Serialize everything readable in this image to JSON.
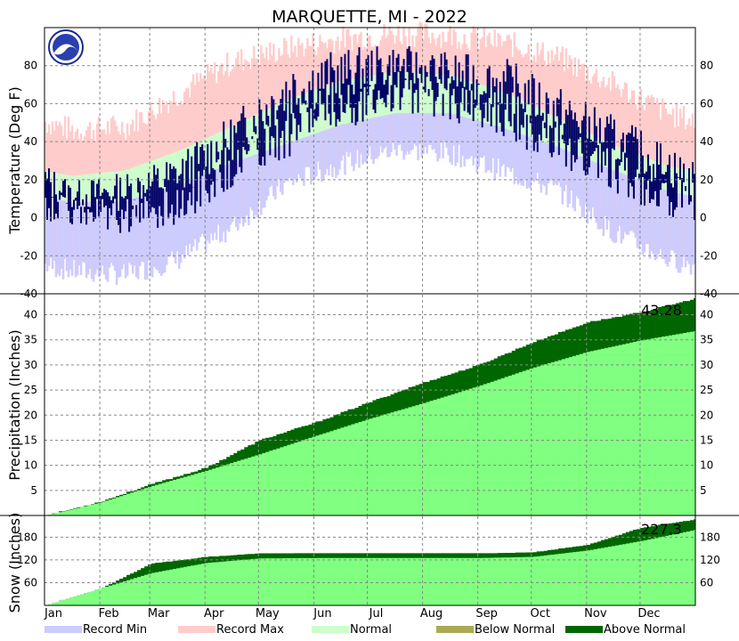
{
  "chart_data": {
    "title": "MARQUETTE, MI - 2022",
    "months": [
      "Jan",
      "Feb",
      "Mar",
      "Apr",
      "May",
      "Jun",
      "Jul",
      "Aug",
      "Sep",
      "Oct",
      "Nov",
      "Dec"
    ],
    "legend": [
      {
        "label": "Record Min",
        "color": "#ccccff"
      },
      {
        "label": "Record Max",
        "color": "#ffcccc"
      },
      {
        "label": "Normal",
        "color": "#ccffcc"
      },
      {
        "label": "Below Normal",
        "color": "#aaaa55"
      },
      {
        "label": "Above Normal",
        "color": "#006600"
      }
    ],
    "colors": {
      "record_min": "#ccccff",
      "record_max": "#ffcccc",
      "normal_band": "#ccffcc",
      "observed": "#000066",
      "normal_fill": "#80ff80",
      "above_normal": "#006600"
    },
    "panels": [
      {
        "id": "temperature",
        "type": "area",
        "ylabel": "Temperature (Deg F)",
        "yticks": [
          -40,
          -20,
          0,
          20,
          40,
          60,
          80
        ],
        "ylim": [
          -40,
          100
        ],
        "series": [
          {
            "name": "Record Max",
            "values_by_month": [
              46,
              48,
              65,
              82,
              89,
              94,
              97,
              96,
              92,
              84,
              70,
              55
            ]
          },
          {
            "name": "Normal",
            "values_by_month": [
              [
                8,
                22
              ],
              [
                9,
                25
              ],
              [
                17,
                35
              ],
              [
                29,
                48
              ],
              [
                39,
                62
              ],
              [
                49,
                72
              ],
              [
                55,
                77
              ],
              [
                55,
                75
              ],
              [
                47,
                66
              ],
              [
                37,
                52
              ],
              [
                25,
                38
              ],
              [
                14,
                27
              ]
            ]
          },
          {
            "name": "Record Min",
            "values_by_month": [
              -28,
              -30,
              -22,
              -5,
              18,
              28,
              36,
              34,
              24,
              14,
              -8,
              -22
            ]
          },
          {
            "name": "Observed",
            "values_by_month": [
              [
                -5,
                20
              ],
              [
                -10,
                25
              ],
              [
                -5,
                35
              ],
              [
                15,
                55
              ],
              [
                30,
                85
              ],
              [
                45,
                90
              ],
              [
                55,
                92
              ],
              [
                50,
                88
              ],
              [
                40,
                85
              ],
              [
                25,
                70
              ],
              [
                10,
                55
              ],
              [
                0,
                40
              ]
            ]
          }
        ]
      },
      {
        "id": "precipitation",
        "type": "area",
        "ylabel": "Precipitation (Inches)",
        "yticks": [
          5,
          10,
          15,
          20,
          25,
          30,
          35,
          40
        ],
        "ylim": [
          0,
          44
        ],
        "annotation": "43.28",
        "series": [
          {
            "name": "Observed cumulative",
            "x": [
              0,
              31,
              59,
              90,
              120,
              151,
              181,
              212,
              243,
              273,
              304,
              334,
              365
            ],
            "values": [
              0,
              2.8,
              6.2,
              9.5,
              15.0,
              18.5,
              22.5,
              26.5,
              30.0,
              34.5,
              38.5,
              40.5,
              43.28
            ]
          },
          {
            "name": "Normal cumulative",
            "x": [
              0,
              31,
              59,
              90,
              120,
              151,
              181,
              212,
              243,
              273,
              304,
              334,
              365
            ],
            "values": [
              0,
              2.6,
              5.8,
              8.9,
              12.2,
              15.8,
              19.2,
              22.4,
              25.8,
              29.4,
              32.6,
              34.9,
              36.8
            ]
          }
        ]
      },
      {
        "id": "snow",
        "type": "area",
        "ylabel": "Snow (Inches)",
        "yticks": [
          60,
          120,
          180
        ],
        "ylim": [
          0,
          235
        ],
        "annotation": "227.3",
        "series": [
          {
            "name": "Observed cumulative",
            "x": [
              0,
              31,
              59,
              90,
              120,
              151,
              181,
              212,
              243,
              273,
              304,
              334,
              365
            ],
            "values": [
              0,
              45,
              110,
              128,
              137,
              137,
              137,
              137,
              137,
              140,
              160,
              205,
              227.3
            ]
          },
          {
            "name": "Normal cumulative",
            "x": [
              0,
              31,
              59,
              90,
              120,
              151,
              181,
              212,
              243,
              273,
              304,
              334,
              365
            ],
            "values": [
              0,
              45,
              85,
              112,
              124,
              125,
              125,
              125,
              125,
              128,
              145,
              170,
              200
            ]
          }
        ]
      }
    ]
  }
}
